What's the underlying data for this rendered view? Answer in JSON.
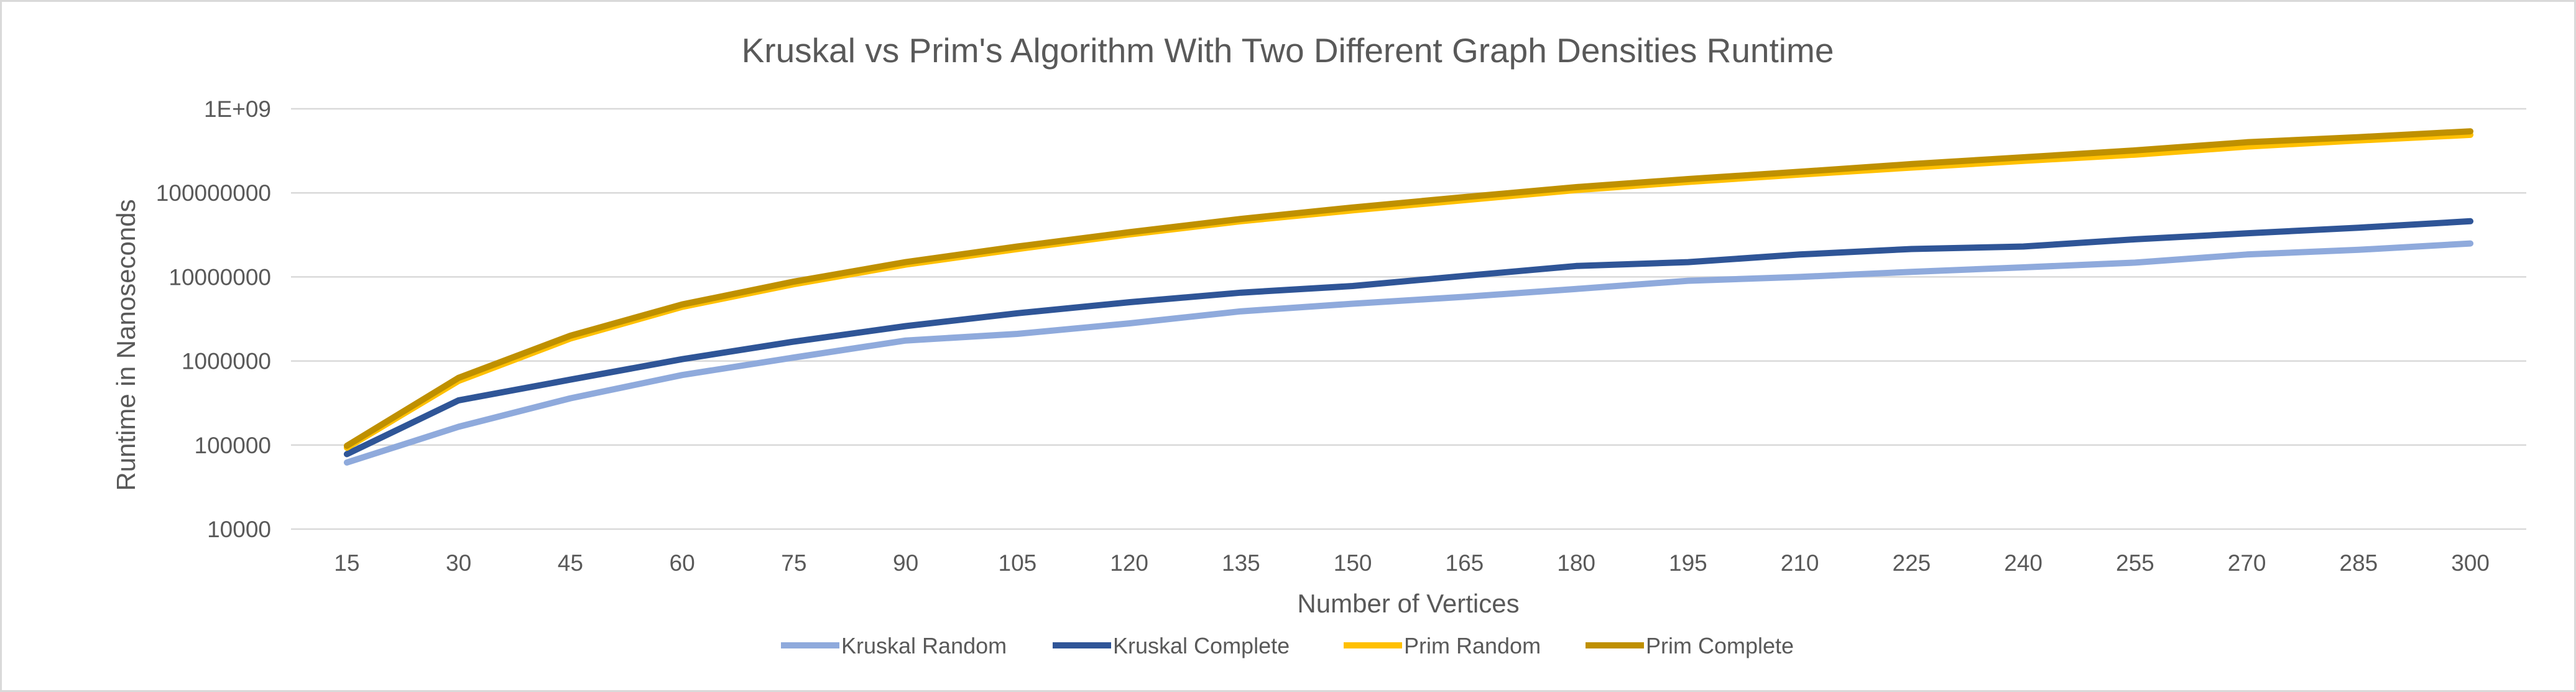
{
  "chart_data": {
    "type": "line",
    "title": "Kruskal vs Prim's Algorithm With Two Different Graph Densities Runtime",
    "xlabel": "Number of Vertices",
    "ylabel": "Runtime in Nanoseconds",
    "y_scale": "log",
    "ylim": [
      10000,
      1000000000
    ],
    "y_tick_values": [
      10000,
      100000,
      1000000,
      10000000,
      100000000,
      1000000000
    ],
    "y_tick_labels": [
      "10000",
      "100000",
      "1000000",
      "10000000",
      "100000000",
      "1E+09"
    ],
    "categories": [
      "15",
      "30",
      "45",
      "60",
      "75",
      "90",
      "105",
      "120",
      "135",
      "150",
      "165",
      "180",
      "195",
      "210",
      "225",
      "240",
      "255",
      "270",
      "285",
      "300"
    ],
    "grid": true,
    "legend_position": "bottom",
    "series": [
      {
        "name": "Kruskal Random",
        "color": "#8faadc",
        "values": [
          62000,
          165000,
          360000,
          680000,
          1100000,
          1750000,
          2100000,
          2800000,
          3900000,
          4800000,
          5800000,
          7200000,
          9000000,
          10000000,
          11500000,
          13000000,
          14800000,
          18500000,
          21000000,
          25000000
        ]
      },
      {
        "name": "Kruskal Complete",
        "color": "#2f5597",
        "values": [
          78000,
          340000,
          600000,
          1050000,
          1700000,
          2600000,
          3700000,
          5000000,
          6500000,
          7800000,
          10300000,
          13500000,
          15000000,
          18500000,
          21500000,
          23000000,
          28000000,
          33000000,
          38500000,
          46000000
        ]
      },
      {
        "name": "Prim Random",
        "color": "#ffc000",
        "values": [
          93000,
          580000,
          1850000,
          4400000,
          8200000,
          14000000,
          21500000,
          32000000,
          46000000,
          62000000,
          82000000,
          108000000,
          135000000,
          165000000,
          200000000,
          240000000,
          285000000,
          355000000,
          420000000,
          490000000
        ]
      },
      {
        "name": "Prim Complete",
        "color": "#bf9000",
        "values": [
          98000,
          630000,
          2000000,
          4700000,
          8800000,
          15000000,
          23000000,
          34000000,
          49000000,
          67000000,
          89000000,
          117000000,
          146000000,
          178000000,
          220000000,
          265000000,
          320000000,
          400000000,
          460000000,
          540000000
        ]
      }
    ]
  }
}
